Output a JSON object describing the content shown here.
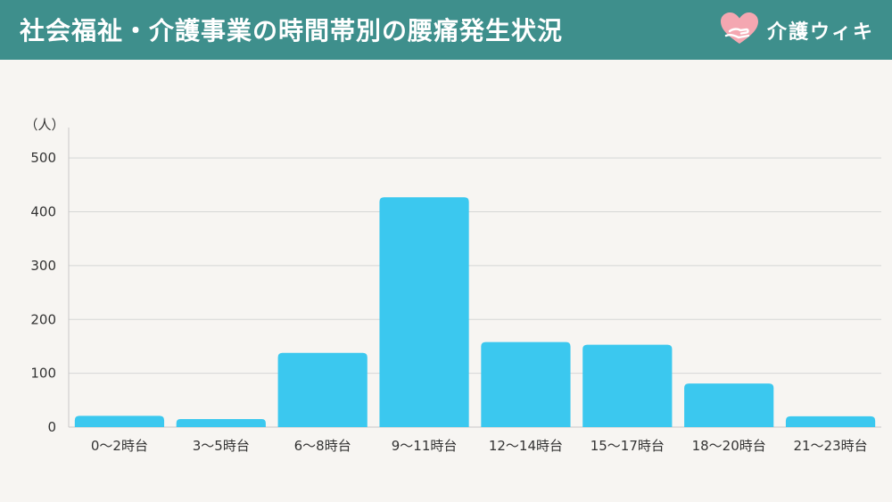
{
  "header": {
    "title": "社会福祉・介護事業の時間帯別の腰痛発生状況",
    "brand_name": "介護ウィキ",
    "logo_icon": "heart-hands-logo-icon",
    "background_color": "#3e8f8c"
  },
  "chart_data": {
    "type": "bar",
    "unit_label": "（人）",
    "categories": [
      "0〜2時台",
      "3〜5時台",
      "6〜8時台",
      "9〜11時台",
      "12〜14時台",
      "15〜17時台",
      "18〜20時台",
      "21〜23時台"
    ],
    "values": [
      21,
      15,
      138,
      427,
      158,
      153,
      81,
      20
    ],
    "ylim": [
      0,
      550
    ],
    "yticks": [
      0,
      100,
      200,
      300,
      400,
      500
    ],
    "grid": true,
    "bar_color": "#3bc8ef"
  }
}
